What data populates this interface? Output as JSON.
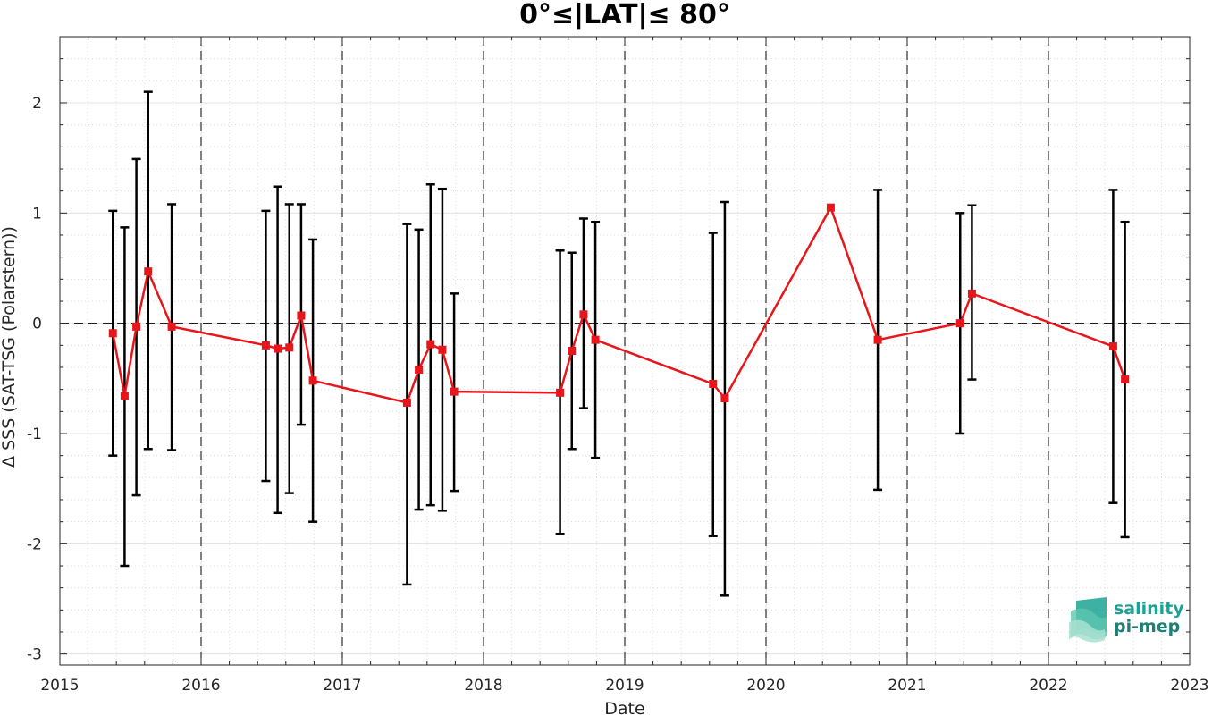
{
  "chart_data": {
    "type": "line",
    "title": "0°≤|LAT|≤ 80°",
    "xlabel": "Date",
    "ylabel": "Δ SSS (SAT-TSG (Polarstern))",
    "xlim": [
      2015,
      2023
    ],
    "ylim": [
      -3.1,
      2.6
    ],
    "xticks": [
      "2015",
      "2016",
      "2017",
      "2018",
      "2019",
      "2020",
      "2021",
      "2022",
      "2023"
    ],
    "yticks": [
      2,
      1,
      0,
      -1,
      -2,
      -3
    ],
    "ytick_labels": [
      "2",
      "1",
      "0",
      "-1",
      "-2",
      "-3"
    ],
    "grid": true,
    "minor_grid": true,
    "year_separators": [
      2016,
      2017,
      2018,
      2019,
      2020,
      2021,
      2022
    ],
    "zero_line": 0,
    "series": [
      {
        "color": "#e8161b",
        "marker": "square",
        "points": [
          {
            "date": "2015-05",
            "y": -0.09,
            "low": -1.2,
            "high": 1.02
          },
          {
            "date": "2015-06",
            "y": -0.66,
            "low": -2.2,
            "high": 0.87
          },
          {
            "date": "2015-07",
            "y": -0.03,
            "low": -1.56,
            "high": 1.49
          },
          {
            "date": "2015-08",
            "y": 0.47,
            "low": -1.14,
            "high": 2.1
          },
          {
            "date": "2015-10",
            "y": -0.03,
            "low": -1.15,
            "high": 1.08
          },
          {
            "date": "2016-06",
            "y": -0.2,
            "low": -1.43,
            "high": 1.02
          },
          {
            "date": "2016-07",
            "y": -0.23,
            "low": -1.72,
            "high": 1.24
          },
          {
            "date": "2016-08",
            "y": -0.22,
            "low": -1.54,
            "high": 1.08
          },
          {
            "date": "2016-09",
            "y": 0.07,
            "low": -0.92,
            "high": 1.08
          },
          {
            "date": "2016-10",
            "y": -0.52,
            "low": -1.8,
            "high": 0.76
          },
          {
            "date": "2017-06",
            "y": -0.72,
            "low": -2.37,
            "high": 0.9
          },
          {
            "date": "2017-07",
            "y": -0.42,
            "low": -1.69,
            "high": 0.85
          },
          {
            "date": "2017-08",
            "y": -0.19,
            "low": -1.65,
            "high": 1.26
          },
          {
            "date": "2017-09",
            "y": -0.24,
            "low": -1.7,
            "high": 1.22
          },
          {
            "date": "2017-10",
            "y": -0.62,
            "low": -1.52,
            "high": 0.27
          },
          {
            "date": "2018-07",
            "y": -0.63,
            "low": -1.91,
            "high": 0.66
          },
          {
            "date": "2018-08",
            "y": -0.25,
            "low": -1.14,
            "high": 0.64
          },
          {
            "date": "2018-09",
            "y": 0.08,
            "low": -0.77,
            "high": 0.95
          },
          {
            "date": "2018-10",
            "y": -0.15,
            "low": -1.22,
            "high": 0.92
          },
          {
            "date": "2019-08",
            "y": -0.55,
            "low": -1.93,
            "high": 0.82
          },
          {
            "date": "2019-09",
            "y": -0.68,
            "low": -2.47,
            "high": 1.1
          },
          {
            "date": "2020-06",
            "y": 1.05,
            "low": null,
            "high": null
          },
          {
            "date": "2020-10",
            "y": -0.15,
            "low": -1.51,
            "high": 1.21
          },
          {
            "date": "2021-05",
            "y": 0.0,
            "low": -1.0,
            "high": 1.0
          },
          {
            "date": "2021-06",
            "y": 0.27,
            "low": -0.51,
            "high": 1.07
          },
          {
            "date": "2022-06",
            "y": -0.21,
            "low": -1.63,
            "high": 1.21
          },
          {
            "date": "2022-07",
            "y": -0.51,
            "low": -1.94,
            "high": 0.92
          }
        ]
      }
    ]
  },
  "logo": {
    "line1": "salinity",
    "line2": "pi-mep",
    "color": "#1aa394"
  }
}
